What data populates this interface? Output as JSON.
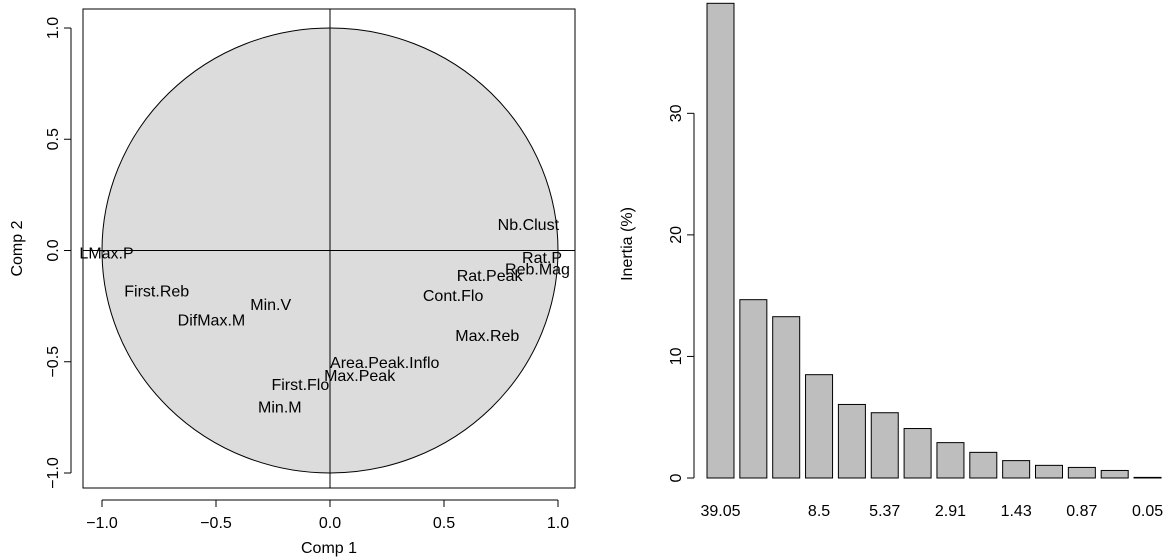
{
  "chart_data": [
    {
      "type": "scatter",
      "subtype": "correlation-circle",
      "xlabel": "Comp 1",
      "ylabel": "Comp 2",
      "xlim": [
        -1.0,
        1.0
      ],
      "ylim": [
        -1.0,
        1.0
      ],
      "xticks": [
        "−1.0",
        "−0.5",
        "0.0",
        "0.5",
        "1.0"
      ],
      "xtick_values": [
        -1.0,
        -0.5,
        0.0,
        0.5,
        1.0
      ],
      "yticks": [
        "−1.0",
        "−0.5",
        "0.0",
        "0.5",
        "1.0"
      ],
      "ytick_values": [
        -1.0,
        -0.5,
        0.0,
        0.5,
        1.0
      ],
      "circle_fill": "#dcdcdc",
      "points": [
        {
          "label": "Nb.Clust",
          "x": 0.87,
          "y": 0.12
        },
        {
          "label": "Rat.P",
          "x": 0.93,
          "y": -0.03
        },
        {
          "label": "Reb.Mag",
          "x": 0.91,
          "y": -0.08
        },
        {
          "label": "Rat.Peak",
          "x": 0.7,
          "y": -0.11
        },
        {
          "label": "Cont.Flo",
          "x": 0.54,
          "y": -0.2
        },
        {
          "label": "Max.Reb",
          "x": 0.69,
          "y": -0.38
        },
        {
          "label": "LMax.P",
          "x": -0.98,
          "y": -0.01
        },
        {
          "label": "First.Reb",
          "x": -0.76,
          "y": -0.18
        },
        {
          "label": "Min.V",
          "x": -0.26,
          "y": -0.24
        },
        {
          "label": "DifMax.M",
          "x": -0.52,
          "y": -0.31
        },
        {
          "label": "Area.Peak.Inflo",
          "x": 0.24,
          "y": -0.5
        },
        {
          "label": "Max.Peak",
          "x": 0.13,
          "y": -0.56
        },
        {
          "label": "First.Flo",
          "x": -0.13,
          "y": -0.6
        },
        {
          "label": "Min.M",
          "x": -0.22,
          "y": -0.7
        }
      ]
    },
    {
      "type": "bar",
      "ylabel": "Inertia (%)",
      "ylim": [
        0,
        38.5
      ],
      "yticks": [
        "0",
        "10",
        "20",
        "30"
      ],
      "ytick_values": [
        0,
        10,
        20,
        30
      ],
      "values": [
        39.05,
        14.67,
        13.27,
        8.5,
        6.05,
        5.37,
        4.07,
        2.91,
        2.11,
        1.43,
        1.04,
        0.87,
        0.62,
        0.05
      ],
      "category_labels": [
        "39.05",
        "",
        "",
        "8.5",
        "",
        "5.37",
        "",
        "2.91",
        "",
        "1.43",
        "",
        "0.87",
        "",
        "0.05"
      ],
      "bar_color": "#bebebe"
    }
  ]
}
